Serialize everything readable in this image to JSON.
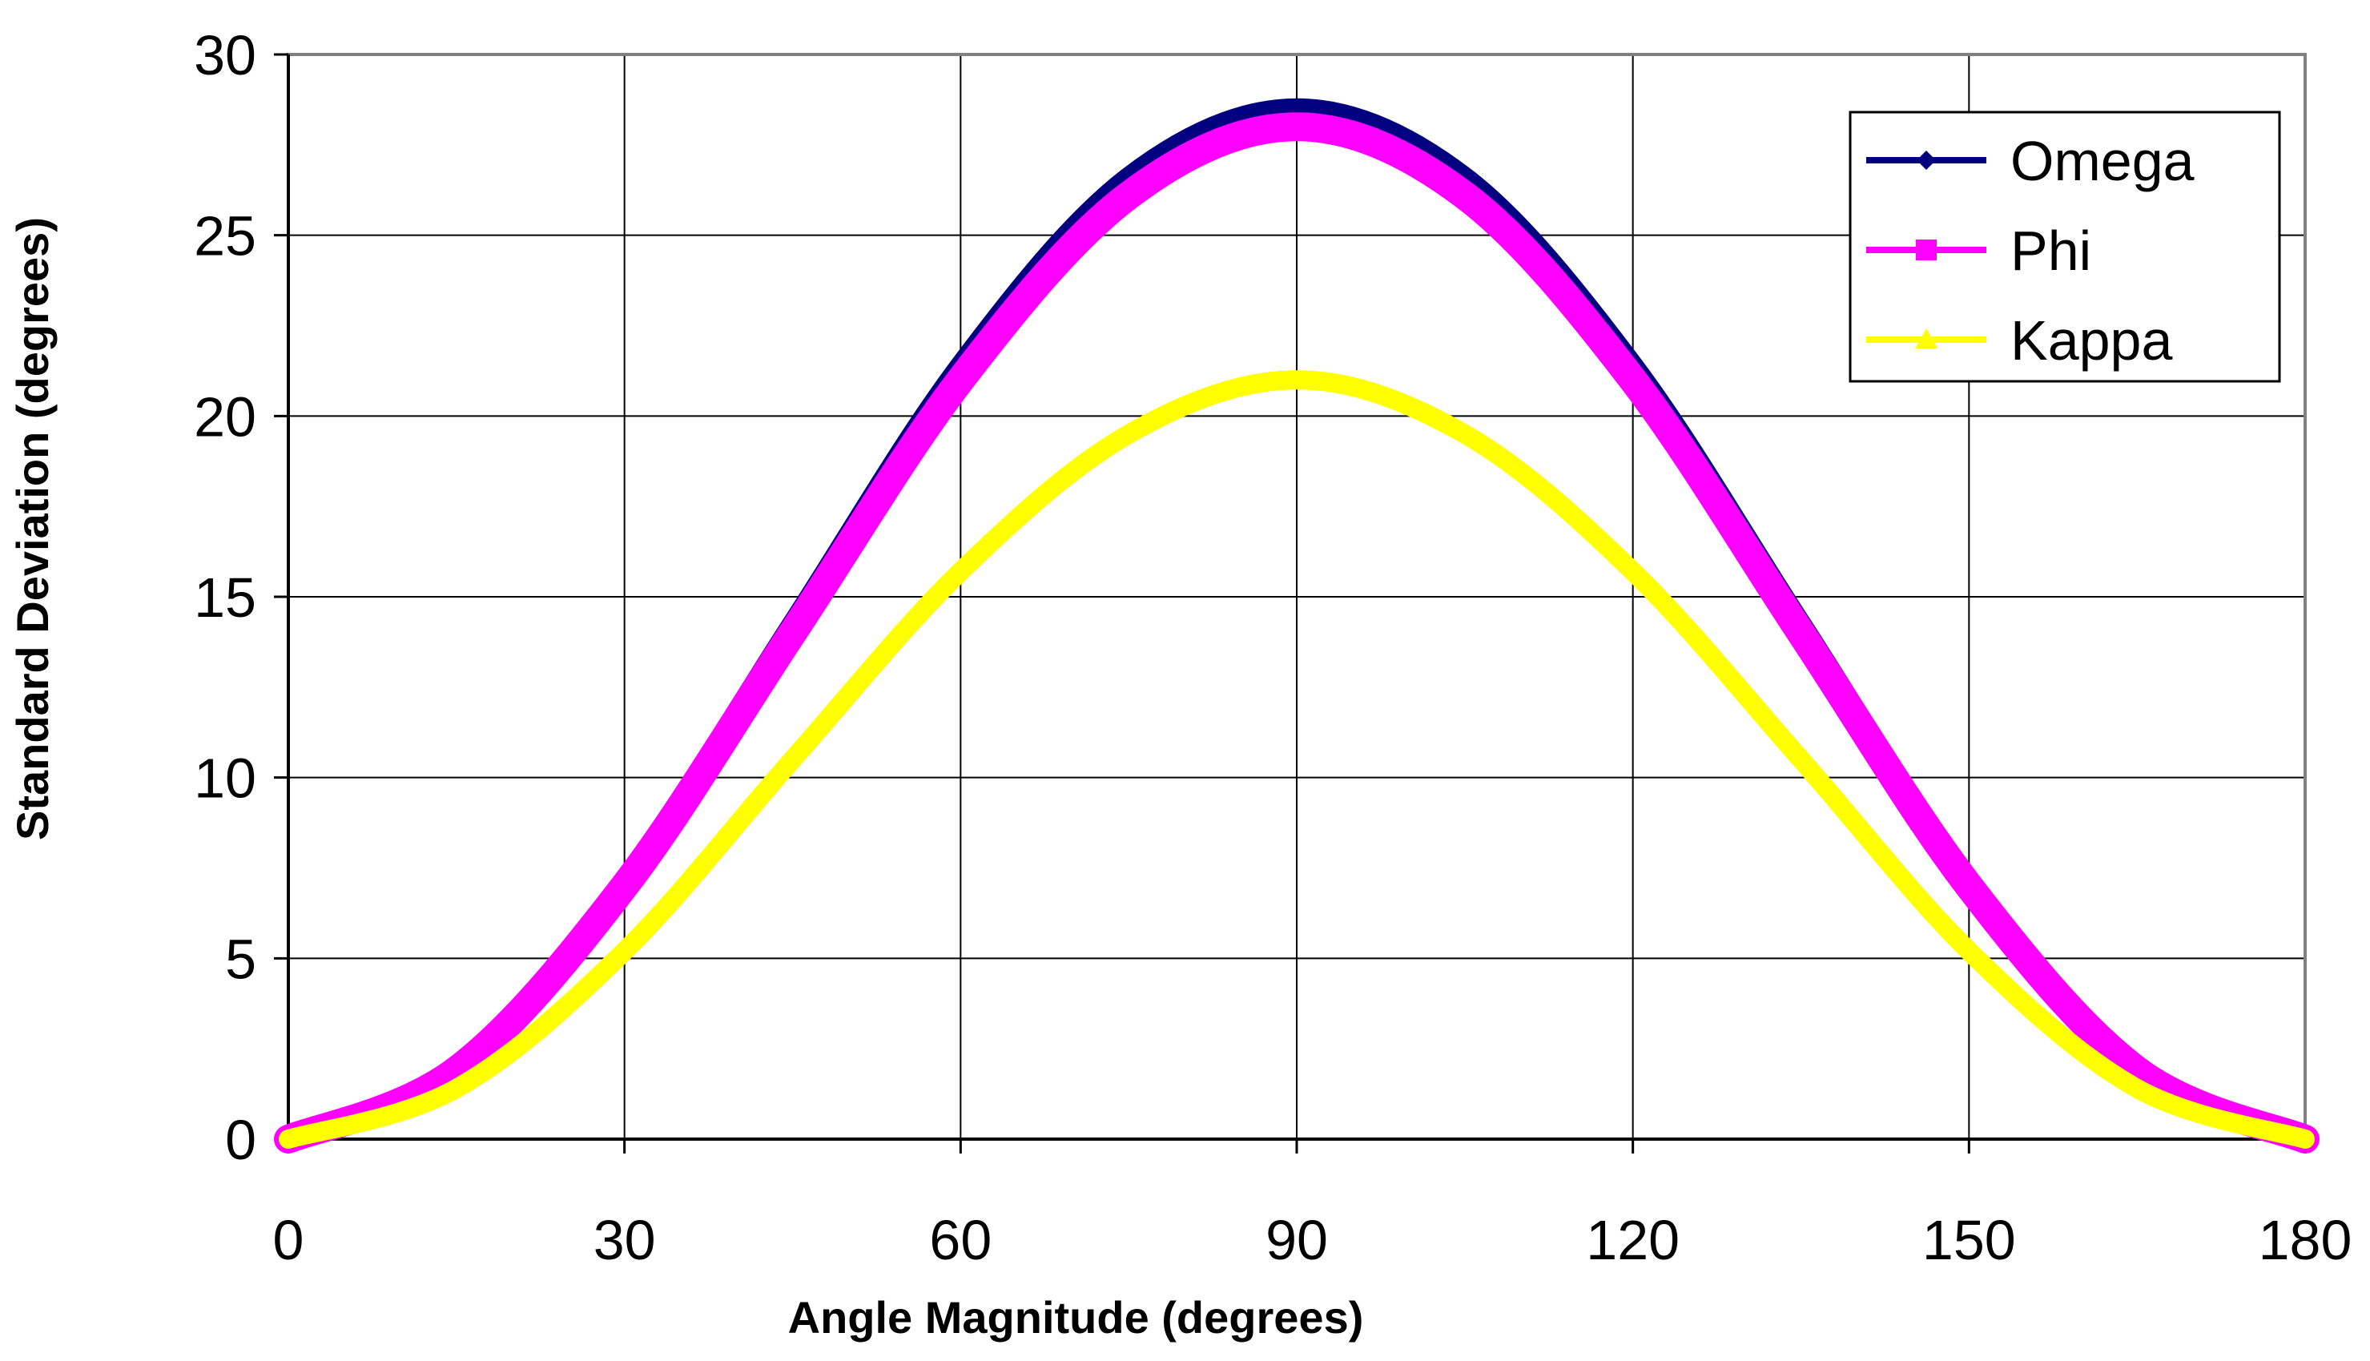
{
  "chart_data": {
    "type": "line",
    "title": "",
    "xlabel": "Angle Magnitude (degrees)",
    "ylabel": "Standard Deviation (degrees)",
    "xlim": [
      0,
      180
    ],
    "ylim": [
      0,
      30
    ],
    "x_ticks": [
      0,
      30,
      60,
      90,
      120,
      150,
      180
    ],
    "y_ticks": [
      0,
      5,
      10,
      15,
      20,
      25,
      30
    ],
    "x_tick_labels": [
      "0",
      "30",
      "60",
      "90",
      "120",
      "150",
      "180"
    ],
    "y_tick_labels": [
      "0",
      "5",
      "10",
      "15",
      "20",
      "25",
      "30"
    ],
    "grid": true,
    "legend_position": "top-right",
    "x": [
      0,
      15,
      30,
      45,
      60,
      75,
      90,
      105,
      120,
      135,
      150,
      165,
      180
    ],
    "series": [
      {
        "name": "Omega",
        "color": "#000080",
        "marker": "diamond",
        "values": [
          0,
          1.9,
          7.1,
          14.25,
          21.4,
          26.6,
          28.5,
          26.6,
          21.4,
          14.25,
          7.1,
          1.9,
          0
        ]
      },
      {
        "name": "Phi",
        "color": "#FF00FF",
        "marker": "square",
        "values": [
          0,
          1.9,
          7.0,
          14.0,
          21.0,
          26.1,
          28.0,
          26.1,
          21.0,
          14.0,
          7.0,
          1.9,
          0
        ]
      },
      {
        "name": "Kappa",
        "color": "#FFFF00",
        "marker": "triangle",
        "values": [
          0,
          1.4,
          5.2,
          10.5,
          15.7,
          19.5,
          21.0,
          19.5,
          15.7,
          10.5,
          5.2,
          1.4,
          0
        ]
      }
    ]
  }
}
